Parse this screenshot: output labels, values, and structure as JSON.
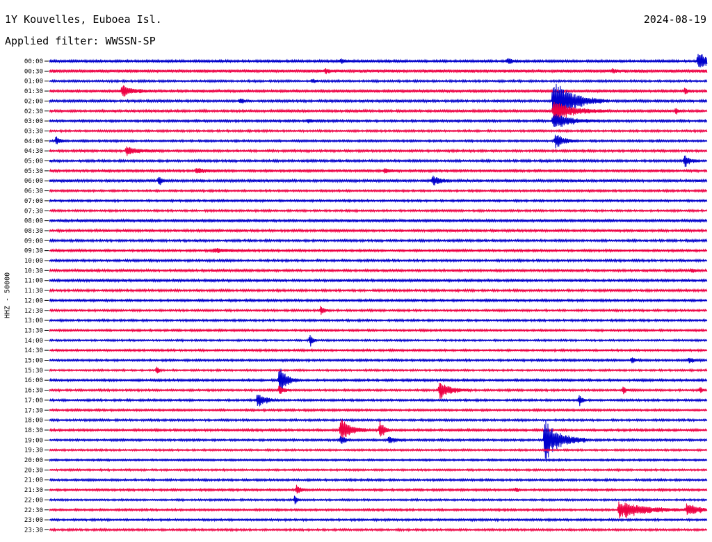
{
  "header": {
    "station": "1Y Kouvelles, Euboea Isl.",
    "date": "2024-08-19",
    "filter": "Applied filter: WWSSN-SP"
  },
  "chart_data": {
    "type": "line",
    "chart_kind": "helicorder",
    "ylabel": "HHZ - 50000",
    "trace_minutes": 30,
    "colors": [
      "#0000cc",
      "#ee0044"
    ],
    "row_labels": [
      "00:00",
      "00:30",
      "01:00",
      "01:30",
      "02:00",
      "02:30",
      "03:00",
      "03:30",
      "04:00",
      "04:30",
      "05:00",
      "05:30",
      "06:00",
      "06:30",
      "07:00",
      "07:30",
      "08:00",
      "08:30",
      "09:00",
      "09:30",
      "10:00",
      "10:30",
      "11:00",
      "11:30",
      "12:00",
      "12:30",
      "13:00",
      "13:30",
      "14:00",
      "14:30",
      "15:00",
      "15:30",
      "16:00",
      "16:30",
      "17:00",
      "17:30",
      "18:00",
      "18:30",
      "19:00",
      "19:30",
      "20:00",
      "20:30",
      "21:00",
      "21:30",
      "22:00",
      "22:30",
      "23:00",
      "23:30"
    ],
    "noise_levels": [
      1.2,
      1.5,
      1.0,
      1.3,
      1.2,
      1.2,
      1.1,
      1.0,
      1.0,
      1.1,
      1.1,
      1.2,
      1.3,
      1.0,
      1.0,
      1.0,
      1.3,
      1.2,
      1.1,
      1.1,
      1.1,
      1.2,
      1.2,
      1.1,
      1.1,
      1.0,
      1.0,
      1.0,
      0.9,
      1.0,
      1.0,
      0.9,
      1.1,
      1.0,
      1.0,
      1.0,
      1.0,
      1.1,
      1.0,
      0.9,
      0.9,
      0.9,
      1.0,
      1.0,
      0.9,
      1.0,
      1.0,
      1.0
    ],
    "events": [
      {
        "row": 0,
        "minute": 29.6,
        "amplitude": 14,
        "duration_min": 1.2
      },
      {
        "row": 0,
        "minute": 13.3,
        "amplitude": 4,
        "duration_min": 0.5
      },
      {
        "row": 0,
        "minute": 20.9,
        "amplitude": 4,
        "duration_min": 0.6
      },
      {
        "row": 1,
        "minute": 12.6,
        "amplitude": 4,
        "duration_min": 0.4
      },
      {
        "row": 1,
        "minute": 25.7,
        "amplitude": 3,
        "duration_min": 0.4
      },
      {
        "row": 2,
        "minute": 12.0,
        "amplitude": 3,
        "duration_min": 0.4
      },
      {
        "row": 3,
        "minute": 3.3,
        "amplitude": 8,
        "duration_min": 1.4
      },
      {
        "row": 3,
        "minute": 29.0,
        "amplitude": 4,
        "duration_min": 0.4
      },
      {
        "row": 4,
        "minute": 8.7,
        "amplitude": 5,
        "duration_min": 0.4
      },
      {
        "row": 4,
        "minute": 23.0,
        "amplitude": 30,
        "duration_min": 2.5
      },
      {
        "row": 5,
        "minute": 23.0,
        "amplitude": 14,
        "duration_min": 2.5
      },
      {
        "row": 5,
        "minute": 28.6,
        "amplitude": 4,
        "duration_min": 0.3
      },
      {
        "row": 6,
        "minute": 23.0,
        "amplitude": 12,
        "duration_min": 2.0
      },
      {
        "row": 6,
        "minute": 11.8,
        "amplitude": 3,
        "duration_min": 0.8
      },
      {
        "row": 8,
        "minute": 0.3,
        "amplitude": 7,
        "duration_min": 0.5
      },
      {
        "row": 8,
        "minute": 23.1,
        "amplitude": 12,
        "duration_min": 1.0
      },
      {
        "row": 9,
        "minute": 3.5,
        "amplitude": 6,
        "duration_min": 1.8
      },
      {
        "row": 10,
        "minute": 29.0,
        "amplitude": 9,
        "duration_min": 0.7
      },
      {
        "row": 11,
        "minute": 6.7,
        "amplitude": 4,
        "duration_min": 1.2
      },
      {
        "row": 11,
        "minute": 15.3,
        "amplitude": 3,
        "duration_min": 0.8
      },
      {
        "row": 12,
        "minute": 5.0,
        "amplitude": 7,
        "duration_min": 0.4
      },
      {
        "row": 12,
        "minute": 17.5,
        "amplitude": 8,
        "duration_min": 0.8
      },
      {
        "row": 19,
        "minute": 7.5,
        "amplitude": 4,
        "duration_min": 1.6
      },
      {
        "row": 21,
        "minute": 29.3,
        "amplitude": 3,
        "duration_min": 0.5
      },
      {
        "row": 25,
        "minute": 12.4,
        "amplitude": 8,
        "duration_min": 0.4
      },
      {
        "row": 28,
        "minute": 11.9,
        "amplitude": 9,
        "duration_min": 0.3
      },
      {
        "row": 30,
        "minute": 26.6,
        "amplitude": 5,
        "duration_min": 0.4
      },
      {
        "row": 30,
        "minute": 29.2,
        "amplitude": 4,
        "duration_min": 0.5
      },
      {
        "row": 31,
        "minute": 4.9,
        "amplitude": 6,
        "duration_min": 0.3
      },
      {
        "row": 32,
        "minute": 10.5,
        "amplitude": 22,
        "duration_min": 0.9
      },
      {
        "row": 33,
        "minute": 10.5,
        "amplitude": 8,
        "duration_min": 0.5
      },
      {
        "row": 33,
        "minute": 17.8,
        "amplitude": 12,
        "duration_min": 1.5
      },
      {
        "row": 33,
        "minute": 26.2,
        "amplitude": 6,
        "duration_min": 0.3
      },
      {
        "row": 33,
        "minute": 29.7,
        "amplitude": 6,
        "duration_min": 0.3
      },
      {
        "row": 34,
        "minute": 9.5,
        "amplitude": 10,
        "duration_min": 1.0
      },
      {
        "row": 34,
        "minute": 24.2,
        "amplitude": 10,
        "duration_min": 0.3
      },
      {
        "row": 37,
        "minute": 13.3,
        "amplitude": 20,
        "duration_min": 1.2
      },
      {
        "row": 37,
        "minute": 15.1,
        "amplitude": 14,
        "duration_min": 0.5
      },
      {
        "row": 38,
        "minute": 13.3,
        "amplitude": 8,
        "duration_min": 0.5
      },
      {
        "row": 38,
        "minute": 15.5,
        "amplitude": 5,
        "duration_min": 0.8
      },
      {
        "row": 38,
        "minute": 22.6,
        "amplitude": 30,
        "duration_min": 2.0
      },
      {
        "row": 43,
        "minute": 11.3,
        "amplitude": 10,
        "duration_min": 0.4
      },
      {
        "row": 43,
        "minute": 21.3,
        "amplitude": 5,
        "duration_min": 0.2
      },
      {
        "row": 44,
        "minute": 11.2,
        "amplitude": 6,
        "duration_min": 0.3
      },
      {
        "row": 45,
        "minute": 26.0,
        "amplitude": 12,
        "duration_min": 3.5
      },
      {
        "row": 45,
        "minute": 29.1,
        "amplitude": 10,
        "duration_min": 1.5
      }
    ]
  }
}
